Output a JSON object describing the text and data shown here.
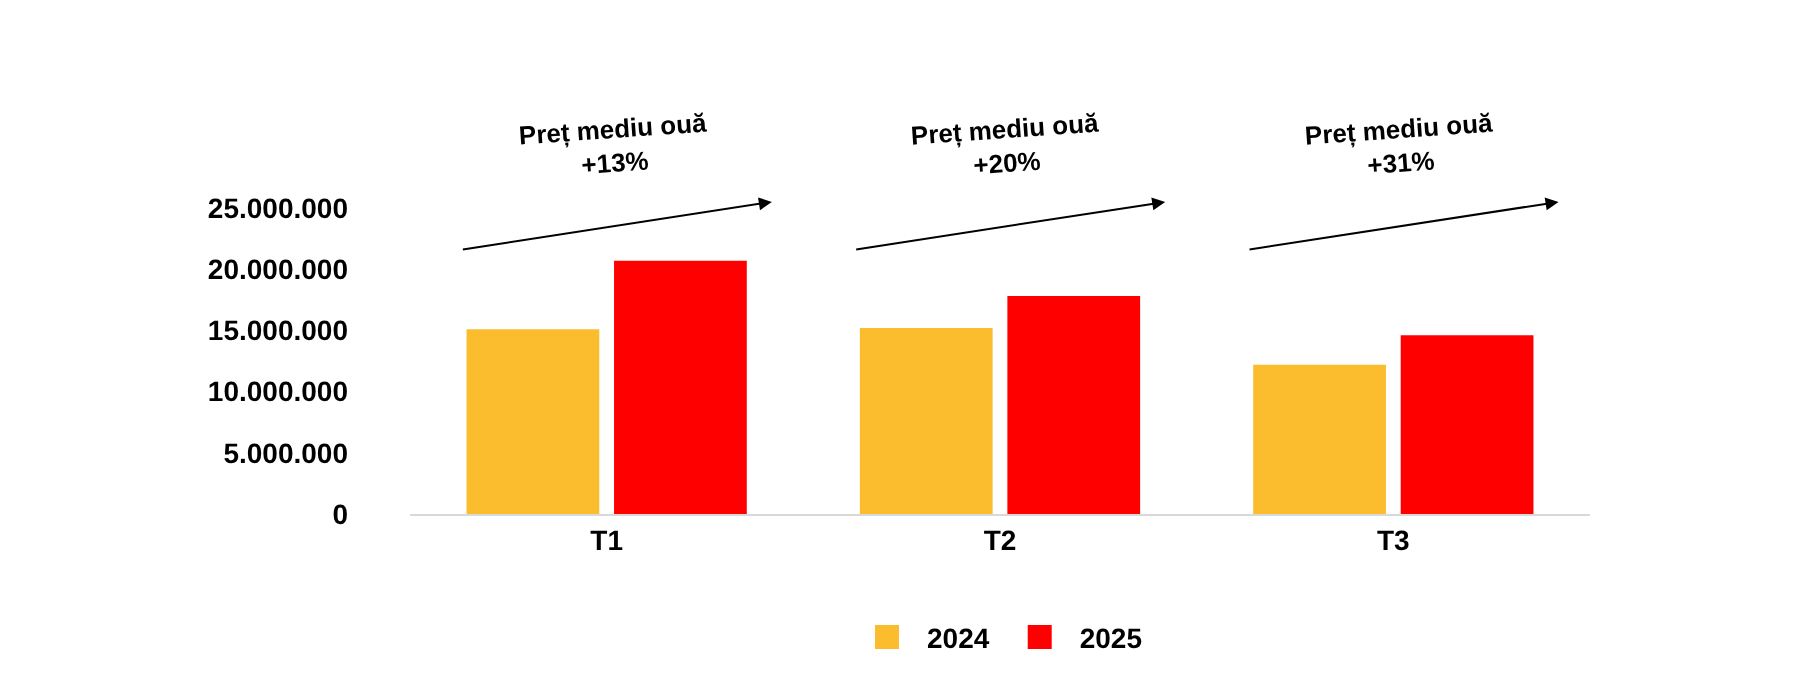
{
  "chart_data": {
    "type": "bar",
    "categories": [
      "T1",
      "T2",
      "T3"
    ],
    "series": [
      {
        "name": "2024",
        "color": "#fbbc2d",
        "values": [
          15100000,
          15200000,
          12200000
        ]
      },
      {
        "name": "2025",
        "color": "#ff0000",
        "values": [
          20700000,
          17800000,
          14600000
        ]
      }
    ],
    "ylim": [
      0,
      25000000
    ],
    "yticks": [
      {
        "value": 0,
        "label": "0"
      },
      {
        "value": 5000000,
        "label": "5.000.000"
      },
      {
        "value": 10000000,
        "label": "10.000.000"
      },
      {
        "value": 15000000,
        "label": "15.000.000"
      },
      {
        "value": 20000000,
        "label": "20.000.000"
      },
      {
        "value": 25000000,
        "label": "25.000.000"
      }
    ],
    "annotations": [
      "Preț mediu ouă\n+13%",
      "Preț mediu ouă\n+20%",
      "Preț mediu ouă\n+31%"
    ],
    "legend": "bottom"
  }
}
